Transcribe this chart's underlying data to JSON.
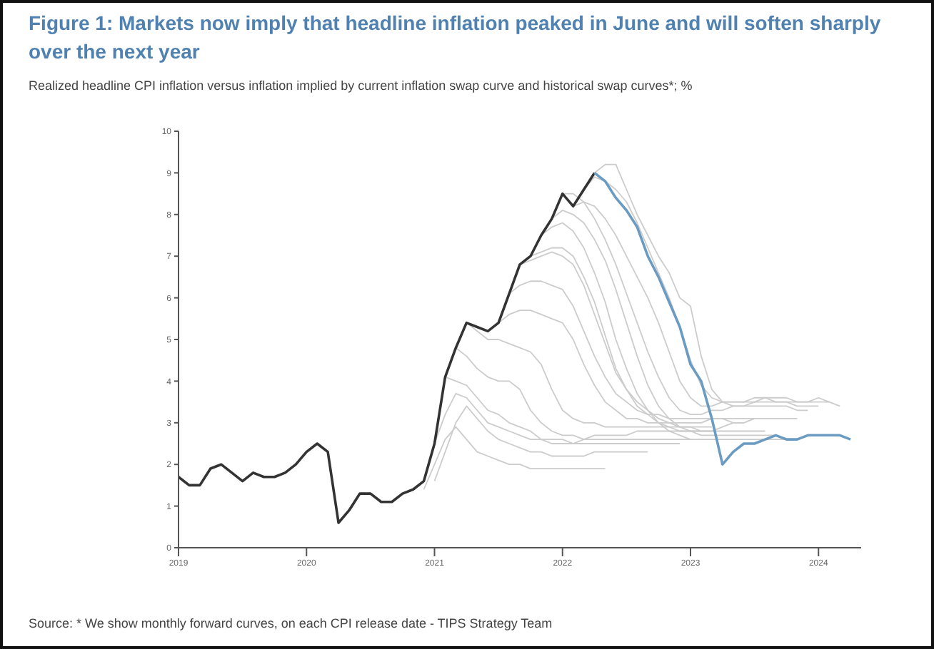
{
  "chart_data": {
    "type": "line",
    "title": "Figure 1: Markets now imply that headline inflation peaked in June and will soften sharply over the next year",
    "subtitle": "Realized headline CPI inflation versus inflation implied by current inflation swap curve and historical swap curves*; %",
    "annotations": [
      "Source: * We show monthly forward curves, on each CPI release date - TIPS Strategy Team"
    ],
    "x": [
      "2019-01",
      "2019-02",
      "2019-03",
      "2019-04",
      "2019-05",
      "2019-06",
      "2019-07",
      "2019-08",
      "2019-09",
      "2019-10",
      "2019-11",
      "2019-12",
      "2020-01",
      "2020-02",
      "2020-03",
      "2020-04",
      "2020-05",
      "2020-06",
      "2020-07",
      "2020-08",
      "2020-09",
      "2020-10",
      "2020-11",
      "2020-12",
      "2021-01",
      "2021-02",
      "2021-03",
      "2021-04",
      "2021-05",
      "2021-06",
      "2021-07",
      "2021-08",
      "2021-09",
      "2021-10",
      "2021-11",
      "2021-12",
      "2022-01",
      "2022-02",
      "2022-03",
      "2022-04",
      "2022-05",
      "2022-06",
      "2022-07",
      "2022-08",
      "2022-09",
      "2022-10",
      "2022-11",
      "2022-12",
      "2023-01",
      "2023-02",
      "2023-03",
      "2023-04",
      "2023-05",
      "2023-06",
      "2023-07",
      "2023-08",
      "2023-09",
      "2023-10",
      "2023-11",
      "2023-12",
      "2024-01",
      "2024-02",
      "2024-03",
      "2024-04"
    ],
    "xlim": [
      "2019-01",
      "2024-05"
    ],
    "xticks": [
      "2019",
      "2020",
      "2021",
      "2022",
      "2023",
      "2024"
    ],
    "ylim": [
      0,
      10
    ],
    "yticks": [
      0,
      1,
      2,
      3,
      4,
      5,
      6,
      7,
      8,
      9,
      10
    ],
    "marker": "none",
    "line_style": "solid",
    "series": [
      {
        "color": "#cccccc",
        "values": [
          null,
          null,
          null,
          null,
          null,
          null,
          null,
          null,
          null,
          null,
          null,
          null,
          null,
          null,
          null,
          null,
          null,
          null,
          null,
          null,
          null,
          null,
          null,
          1.4,
          2.0,
          2.6,
          2.9,
          2.6,
          2.3,
          2.2,
          2.1,
          2.0,
          2.0,
          1.9,
          1.9,
          1.9,
          1.9,
          1.9,
          1.9,
          1.9,
          1.9,
          null,
          null,
          null,
          null,
          null,
          null,
          null,
          null,
          null,
          null,
          null,
          null,
          null,
          null,
          null,
          null,
          null,
          null,
          null,
          null,
          null,
          null,
          null
        ]
      },
      {
        "color": "#cccccc",
        "values": [
          null,
          null,
          null,
          null,
          null,
          null,
          null,
          null,
          null,
          null,
          null,
          null,
          null,
          null,
          null,
          null,
          null,
          null,
          null,
          null,
          null,
          null,
          null,
          null,
          1.6,
          2.3,
          3.0,
          3.4,
          3.1,
          2.8,
          2.6,
          2.5,
          2.4,
          2.3,
          2.3,
          2.2,
          2.2,
          2.2,
          2.2,
          2.3,
          2.3,
          2.3,
          2.3,
          2.3,
          2.3,
          null,
          null,
          null,
          null,
          null,
          null,
          null,
          null,
          null,
          null,
          null,
          null,
          null,
          null,
          null,
          null,
          null,
          null,
          null
        ]
      },
      {
        "color": "#cccccc",
        "values": [
          null,
          null,
          null,
          null,
          null,
          null,
          null,
          null,
          null,
          null,
          null,
          null,
          null,
          null,
          null,
          null,
          null,
          null,
          null,
          null,
          null,
          null,
          null,
          null,
          2.5,
          3.2,
          3.7,
          3.6,
          3.3,
          3.0,
          2.9,
          2.8,
          2.7,
          2.6,
          2.6,
          2.5,
          2.5,
          2.5,
          2.5,
          2.5,
          2.5,
          2.5,
          2.5,
          2.5,
          2.5,
          2.5,
          2.5,
          2.5,
          null,
          null,
          null,
          null,
          null,
          null,
          null,
          null,
          null,
          null,
          null,
          null,
          null,
          null,
          null,
          null
        ]
      },
      {
        "color": "#cccccc",
        "values": [
          null,
          null,
          null,
          null,
          null,
          null,
          null,
          null,
          null,
          null,
          null,
          null,
          null,
          null,
          null,
          null,
          null,
          null,
          null,
          null,
          null,
          null,
          null,
          null,
          null,
          4.1,
          4.0,
          3.9,
          3.6,
          3.3,
          3.2,
          3.0,
          2.9,
          2.8,
          2.6,
          2.6,
          2.6,
          2.5,
          2.6,
          2.6,
          2.6,
          2.6,
          2.6,
          2.6,
          2.6,
          2.6,
          2.6,
          2.6,
          2.6,
          null,
          null,
          null,
          null,
          null,
          null,
          null,
          null,
          null,
          null,
          null,
          null,
          null,
          null,
          null
        ]
      },
      {
        "color": "#cccccc",
        "values": [
          null,
          null,
          null,
          null,
          null,
          null,
          null,
          null,
          null,
          null,
          null,
          null,
          null,
          null,
          null,
          null,
          null,
          null,
          null,
          null,
          null,
          null,
          null,
          null,
          null,
          null,
          4.8,
          4.6,
          4.3,
          4.1,
          4.0,
          4.0,
          3.8,
          3.3,
          3.0,
          2.8,
          2.7,
          2.7,
          2.6,
          2.7,
          2.7,
          2.7,
          2.7,
          2.8,
          2.8,
          2.8,
          2.8,
          2.8,
          2.8,
          2.8,
          null,
          null,
          null,
          null,
          null,
          null,
          null,
          null,
          null,
          null,
          null,
          null,
          null,
          null
        ]
      },
      {
        "color": "#cccccc",
        "values": [
          null,
          null,
          null,
          null,
          null,
          null,
          null,
          null,
          null,
          null,
          null,
          null,
          null,
          null,
          null,
          null,
          null,
          null,
          null,
          null,
          null,
          null,
          null,
          null,
          null,
          null,
          null,
          5.4,
          5.2,
          5.0,
          5.0,
          4.9,
          4.8,
          4.7,
          4.4,
          3.8,
          3.3,
          3.1,
          3.0,
          3.0,
          2.9,
          2.9,
          2.9,
          2.9,
          2.9,
          2.9,
          2.9,
          2.9,
          2.9,
          2.9,
          2.9,
          null,
          null,
          null,
          null,
          null,
          null,
          null,
          null,
          null,
          null,
          null,
          null,
          null
        ]
      },
      {
        "color": "#cccccc",
        "values": [
          null,
          null,
          null,
          null,
          null,
          null,
          null,
          null,
          null,
          null,
          null,
          null,
          null,
          null,
          null,
          null,
          null,
          null,
          null,
          null,
          null,
          null,
          null,
          null,
          null,
          null,
          null,
          null,
          null,
          null,
          5.4,
          5.6,
          5.7,
          5.7,
          5.6,
          5.5,
          5.4,
          5.0,
          4.4,
          3.9,
          3.5,
          3.3,
          3.1,
          3.1,
          3.0,
          3.0,
          3.0,
          3.0,
          3.0,
          3.0,
          3.1,
          3.1,
          3.0,
          3.0,
          null,
          null,
          null,
          null,
          null,
          null,
          null,
          null,
          null,
          null
        ]
      },
      {
        "color": "#cccccc",
        "values": [
          null,
          null,
          null,
          null,
          null,
          null,
          null,
          null,
          null,
          null,
          null,
          null,
          null,
          null,
          null,
          null,
          null,
          null,
          null,
          null,
          null,
          null,
          null,
          null,
          null,
          null,
          null,
          null,
          null,
          null,
          null,
          6.1,
          6.3,
          6.4,
          6.4,
          6.3,
          6.2,
          5.8,
          5.2,
          4.6,
          4.1,
          3.7,
          3.5,
          3.3,
          3.2,
          3.2,
          3.1,
          3.1,
          3.1,
          3.1,
          3.1,
          3.1,
          3.1,
          3.1,
          3.1,
          null,
          null,
          null,
          null,
          null,
          null,
          null,
          null,
          null
        ]
      },
      {
        "color": "#cccccc",
        "values": [
          null,
          null,
          null,
          null,
          null,
          null,
          null,
          null,
          null,
          null,
          null,
          null,
          null,
          null,
          null,
          null,
          null,
          null,
          null,
          null,
          null,
          null,
          null,
          null,
          null,
          null,
          null,
          null,
          null,
          null,
          null,
          null,
          6.8,
          6.9,
          7.0,
          7.1,
          7.0,
          6.8,
          6.3,
          5.6,
          4.9,
          4.2,
          3.8,
          3.5,
          3.3,
          3.1,
          3.0,
          2.9,
          2.9,
          2.8,
          2.8,
          2.8,
          2.8,
          2.8,
          2.8,
          2.8,
          null,
          null,
          null,
          null,
          null,
          null,
          null,
          null
        ]
      },
      {
        "color": "#cccccc",
        "values": [
          null,
          null,
          null,
          null,
          null,
          null,
          null,
          null,
          null,
          null,
          null,
          null,
          null,
          null,
          null,
          null,
          null,
          null,
          null,
          null,
          null,
          null,
          null,
          null,
          null,
          null,
          null,
          null,
          null,
          null,
          null,
          null,
          null,
          7.0,
          7.1,
          7.2,
          7.2,
          7.0,
          6.5,
          5.9,
          5.1,
          4.3,
          3.8,
          3.4,
          3.2,
          3.0,
          2.9,
          2.8,
          2.8,
          2.7,
          2.7,
          2.7,
          2.7,
          2.7,
          2.7,
          2.7,
          2.7,
          null,
          null,
          null,
          null,
          null,
          null,
          null
        ]
      },
      {
        "color": "#cccccc",
        "values": [
          null,
          null,
          null,
          null,
          null,
          null,
          null,
          null,
          null,
          null,
          null,
          null,
          null,
          null,
          null,
          null,
          null,
          null,
          null,
          null,
          null,
          null,
          null,
          null,
          null,
          null,
          null,
          null,
          null,
          null,
          null,
          null,
          null,
          null,
          7.5,
          7.7,
          7.8,
          7.6,
          7.2,
          6.6,
          5.9,
          5.0,
          4.3,
          3.7,
          3.3,
          3.0,
          2.8,
          2.7,
          2.6,
          2.6,
          2.6,
          2.6,
          2.6,
          2.6,
          2.6,
          2.6,
          2.6,
          2.6,
          null,
          null,
          null,
          null,
          null,
          null
        ]
      },
      {
        "color": "#cccccc",
        "values": [
          null,
          null,
          null,
          null,
          null,
          null,
          null,
          null,
          null,
          null,
          null,
          null,
          null,
          null,
          null,
          null,
          null,
          null,
          null,
          null,
          null,
          null,
          null,
          null,
          null,
          null,
          null,
          null,
          null,
          null,
          null,
          null,
          null,
          null,
          null,
          7.9,
          8.1,
          8.0,
          7.8,
          7.4,
          6.9,
          6.2,
          5.4,
          4.6,
          3.9,
          3.4,
          3.1,
          2.9,
          2.8,
          2.8,
          2.8,
          2.9,
          3.0,
          3.0,
          3.1,
          3.1,
          3.1,
          3.1,
          3.1,
          null,
          null,
          null,
          null,
          null
        ]
      },
      {
        "color": "#cccccc",
        "values": [
          null,
          null,
          null,
          null,
          null,
          null,
          null,
          null,
          null,
          null,
          null,
          null,
          null,
          null,
          null,
          null,
          null,
          null,
          null,
          null,
          null,
          null,
          null,
          null,
          null,
          null,
          null,
          null,
          null,
          null,
          null,
          null,
          null,
          null,
          null,
          null,
          8.5,
          8.5,
          8.3,
          7.9,
          7.4,
          6.8,
          6.1,
          5.4,
          4.7,
          4.1,
          3.6,
          3.3,
          3.2,
          3.2,
          3.3,
          3.3,
          3.4,
          3.4,
          3.4,
          3.4,
          3.4,
          3.4,
          3.3,
          3.3,
          null,
          null,
          null,
          null
        ]
      },
      {
        "color": "#cccccc",
        "values": [
          null,
          null,
          null,
          null,
          null,
          null,
          null,
          null,
          null,
          null,
          null,
          null,
          null,
          null,
          null,
          null,
          null,
          null,
          null,
          null,
          null,
          null,
          null,
          null,
          null,
          null,
          null,
          null,
          null,
          null,
          null,
          null,
          null,
          null,
          null,
          null,
          null,
          8.2,
          8.3,
          8.2,
          7.9,
          7.5,
          7.0,
          6.5,
          6.0,
          5.4,
          4.7,
          4.0,
          3.6,
          3.4,
          3.4,
          3.5,
          3.5,
          3.5,
          3.5,
          3.6,
          3.5,
          3.5,
          3.4,
          3.4,
          3.4,
          null,
          null,
          null
        ]
      },
      {
        "color": "#cccccc",
        "values": [
          null,
          null,
          null,
          null,
          null,
          null,
          null,
          null,
          null,
          null,
          null,
          null,
          null,
          null,
          null,
          null,
          null,
          null,
          null,
          null,
          null,
          null,
          null,
          null,
          null,
          null,
          null,
          null,
          null,
          null,
          null,
          null,
          null,
          null,
          null,
          null,
          null,
          null,
          8.6,
          8.9,
          8.8,
          8.6,
          8.3,
          7.8,
          7.2,
          6.6,
          6.0,
          5.3,
          4.5,
          3.9,
          3.6,
          3.5,
          3.5,
          3.5,
          3.6,
          3.6,
          3.6,
          3.6,
          3.5,
          3.5,
          3.5,
          3.5,
          null,
          null
        ]
      },
      {
        "color": "#cccccc",
        "values": [
          null,
          null,
          null,
          null,
          null,
          null,
          null,
          null,
          null,
          null,
          null,
          null,
          null,
          null,
          null,
          null,
          null,
          null,
          null,
          null,
          null,
          null,
          null,
          null,
          null,
          null,
          null,
          null,
          null,
          null,
          null,
          null,
          null,
          null,
          null,
          null,
          null,
          null,
          null,
          9.0,
          9.2,
          9.2,
          8.6,
          8.0,
          7.5,
          7.0,
          6.6,
          6.0,
          5.8,
          4.6,
          3.8,
          3.5,
          3.4,
          3.4,
          3.5,
          3.5,
          3.5,
          3.5,
          3.5,
          3.5,
          3.6,
          3.5,
          3.4,
          null
        ]
      },
      {
        "color": "#333333",
        "values": [
          1.7,
          1.5,
          1.5,
          1.9,
          2.0,
          1.8,
          1.6,
          1.8,
          1.7,
          1.7,
          1.8,
          2.0,
          2.3,
          2.5,
          2.3,
          0.6,
          0.9,
          1.3,
          1.3,
          1.1,
          1.1,
          1.3,
          1.4,
          1.6,
          2.5,
          4.1,
          4.8,
          5.4,
          5.3,
          5.2,
          5.4,
          6.1,
          6.8,
          7.0,
          7.5,
          7.9,
          8.5,
          8.2,
          8.6,
          9.0,
          null,
          null,
          null,
          null,
          null,
          null,
          null,
          null,
          null,
          null,
          null,
          null,
          null,
          null,
          null,
          null,
          null,
          null,
          null,
          null,
          null,
          null,
          null,
          null
        ]
      },
      {
        "color": "#6a9bc3",
        "values": [
          null,
          null,
          null,
          null,
          null,
          null,
          null,
          null,
          null,
          null,
          null,
          null,
          null,
          null,
          null,
          null,
          null,
          null,
          null,
          null,
          null,
          null,
          null,
          null,
          null,
          null,
          null,
          null,
          null,
          null,
          null,
          null,
          null,
          null,
          null,
          null,
          null,
          null,
          null,
          9.0,
          8.8,
          8.4,
          8.1,
          7.7,
          7.0,
          6.5,
          5.9,
          5.3,
          4.4,
          4.0,
          3.1,
          2.0,
          2.3,
          2.5,
          2.5,
          2.6,
          2.7,
          2.6,
          2.6,
          2.7,
          2.7,
          2.7,
          2.7,
          2.6
        ]
      }
    ]
  }
}
